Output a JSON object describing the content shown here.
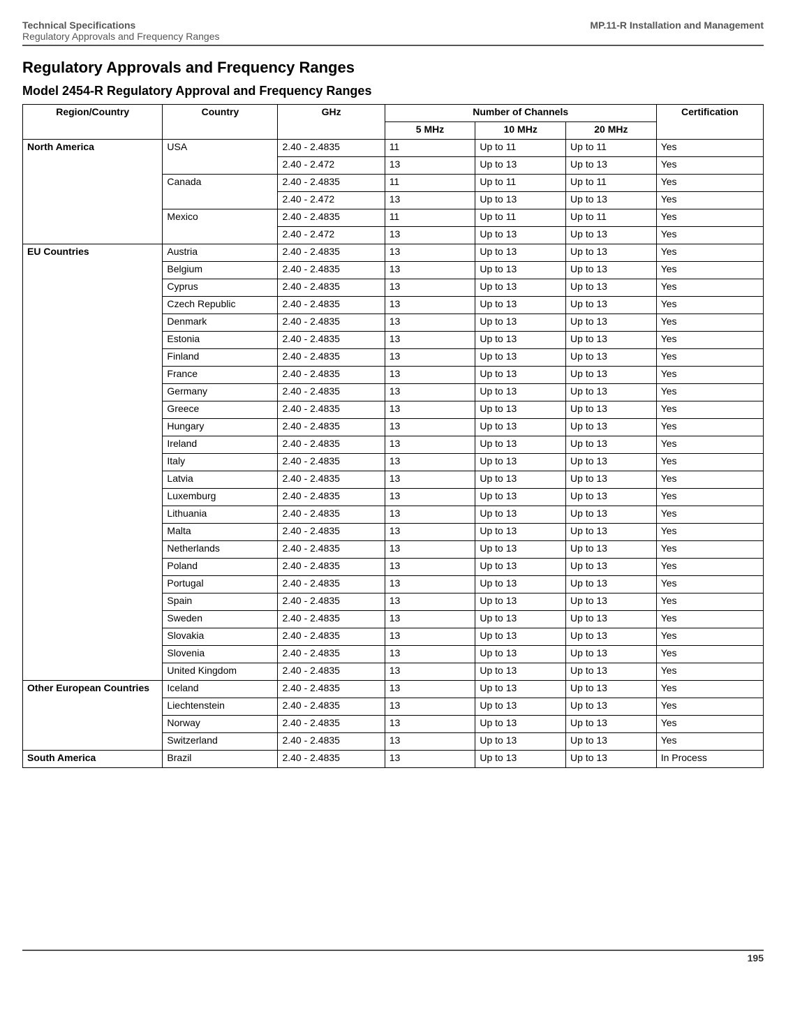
{
  "header": {
    "left_line1": "Technical Specifications",
    "left_line2": "Regulatory Approvals and Frequency Ranges",
    "right": "MP.11-R Installation and Management"
  },
  "titles": {
    "section": "Regulatory Approvals and Frequency Ranges",
    "subsection": "Model 2454-R Regulatory Approval and Frequency Ranges"
  },
  "table": {
    "head": {
      "region": "Region/Country",
      "country": "Country",
      "ghz": "GHz",
      "channels": "Number of Channels",
      "cert": "Certification",
      "c5": "5 MHz",
      "c10": "10 MHz",
      "c20": "20 MHz"
    },
    "groups": [
      {
        "region": "North America",
        "rows": [
          {
            "country": "USA",
            "country_rowspan": 2,
            "ghz": "2.40 - 2.4835",
            "c5": "11",
            "c10": "Up to 11",
            "c20": "Up to 11",
            "cert": "Yes"
          },
          {
            "ghz": "2.40 - 2.472",
            "c5": "13",
            "c10": "Up to 13",
            "c20": "Up to 13",
            "cert": "Yes"
          },
          {
            "country": "Canada",
            "country_rowspan": 2,
            "ghz": "2.40 - 2.4835",
            "c5": "11",
            "c10": "Up to 11",
            "c20": "Up to 11",
            "cert": "Yes"
          },
          {
            "ghz": "2.40 - 2.472",
            "c5": "13",
            "c10": "Up to 13",
            "c20": "Up to 13",
            "cert": "Yes"
          },
          {
            "country": "Mexico",
            "country_rowspan": 2,
            "ghz": "2.40 - 2.4835",
            "c5": "11",
            "c10": "Up to 11",
            "c20": "Up to 11",
            "cert": "Yes"
          },
          {
            "ghz": "2.40 - 2.472",
            "c5": "13",
            "c10": "Up to 13",
            "c20": "Up to 13",
            "cert": "Yes"
          }
        ]
      },
      {
        "region": "EU Countries",
        "rows": [
          {
            "country": "Austria",
            "ghz": "2.40 - 2.4835",
            "c5": "13",
            "c10": "Up to 13",
            "c20": "Up to 13",
            "cert": "Yes"
          },
          {
            "country": "Belgium",
            "ghz": "2.40 - 2.4835",
            "c5": "13",
            "c10": "Up to 13",
            "c20": "Up to 13",
            "cert": "Yes"
          },
          {
            "country": "Cyprus",
            "ghz": "2.40 - 2.4835",
            "c5": "13",
            "c10": "Up to 13",
            "c20": "Up to 13",
            "cert": "Yes"
          },
          {
            "country": "Czech Republic",
            "ghz": "2.40 - 2.4835",
            "c5": "13",
            "c10": "Up to 13",
            "c20": "Up to 13",
            "cert": "Yes"
          },
          {
            "country": "Denmark",
            "ghz": "2.40 - 2.4835",
            "c5": "13",
            "c10": "Up to 13",
            "c20": "Up to 13",
            "cert": "Yes"
          },
          {
            "country": "Estonia",
            "ghz": "2.40 - 2.4835",
            "c5": "13",
            "c10": "Up to 13",
            "c20": "Up to 13",
            "cert": "Yes"
          },
          {
            "country": "Finland",
            "ghz": "2.40 - 2.4835",
            "c5": "13",
            "c10": "Up to 13",
            "c20": "Up to 13",
            "cert": "Yes"
          },
          {
            "country": "France",
            "ghz": "2.40 - 2.4835",
            "c5": "13",
            "c10": "Up to 13",
            "c20": "Up to 13",
            "cert": "Yes"
          },
          {
            "country": "Germany",
            "ghz": "2.40 - 2.4835",
            "c5": "13",
            "c10": "Up to 13",
            "c20": "Up to 13",
            "cert": "Yes"
          },
          {
            "country": "Greece",
            "ghz": "2.40 - 2.4835",
            "c5": "13",
            "c10": "Up to 13",
            "c20": "Up to 13",
            "cert": "Yes"
          },
          {
            "country": "Hungary",
            "ghz": "2.40 - 2.4835",
            "c5": "13",
            "c10": "Up to 13",
            "c20": "Up to 13",
            "cert": "Yes"
          },
          {
            "country": "Ireland",
            "ghz": "2.40 - 2.4835",
            "c5": "13",
            "c10": "Up to 13",
            "c20": "Up to 13",
            "cert": "Yes"
          },
          {
            "country": "Italy",
            "ghz": "2.40 - 2.4835",
            "c5": "13",
            "c10": "Up to 13",
            "c20": "Up to 13",
            "cert": "Yes"
          },
          {
            "country": "Latvia",
            "ghz": "2.40 - 2.4835",
            "c5": "13",
            "c10": "Up to 13",
            "c20": "Up to 13",
            "cert": "Yes"
          },
          {
            "country": "Luxemburg",
            "ghz": "2.40 - 2.4835",
            "c5": "13",
            "c10": "Up to 13",
            "c20": "Up to 13",
            "cert": "Yes"
          },
          {
            "country": "Lithuania",
            "ghz": "2.40 - 2.4835",
            "c5": "13",
            "c10": "Up to 13",
            "c20": "Up to 13",
            "cert": "Yes"
          },
          {
            "country": "Malta",
            "ghz": "2.40 - 2.4835",
            "c5": "13",
            "c10": "Up to 13",
            "c20": "Up to 13",
            "cert": "Yes"
          },
          {
            "country": "Netherlands",
            "ghz": "2.40 - 2.4835",
            "c5": "13",
            "c10": "Up to 13",
            "c20": "Up to 13",
            "cert": "Yes"
          },
          {
            "country": "Poland",
            "ghz": "2.40 - 2.4835",
            "c5": "13",
            "c10": "Up to 13",
            "c20": "Up to 13",
            "cert": "Yes"
          },
          {
            "country": "Portugal",
            "ghz": "2.40 - 2.4835",
            "c5": "13",
            "c10": "Up to 13",
            "c20": "Up to 13",
            "cert": "Yes"
          },
          {
            "country": "Spain",
            "ghz": "2.40 - 2.4835",
            "c5": "13",
            "c10": "Up to 13",
            "c20": "Up to 13",
            "cert": "Yes"
          },
          {
            "country": "Sweden",
            "ghz": "2.40 - 2.4835",
            "c5": "13",
            "c10": "Up to 13",
            "c20": "Up to 13",
            "cert": "Yes"
          },
          {
            "country": "Slovakia",
            "ghz": "2.40 - 2.4835",
            "c5": "13",
            "c10": "Up to 13",
            "c20": "Up to 13",
            "cert": "Yes"
          },
          {
            "country": "Slovenia",
            "ghz": "2.40 - 2.4835",
            "c5": "13",
            "c10": "Up to 13",
            "c20": "Up to 13",
            "cert": "Yes"
          },
          {
            "country": "United Kingdom",
            "ghz": "2.40 - 2.4835",
            "c5": "13",
            "c10": "Up to 13",
            "c20": "Up to 13",
            "cert": "Yes"
          }
        ]
      },
      {
        "region": "Other European Countries",
        "rows": [
          {
            "country": "Iceland",
            "ghz": "2.40 - 2.4835",
            "c5": "13",
            "c10": "Up to 13",
            "c20": "Up to 13",
            "cert": "Yes"
          },
          {
            "country": "Liechtenstein",
            "ghz": "2.40 - 2.4835",
            "c5": "13",
            "c10": "Up to 13",
            "c20": "Up to 13",
            "cert": "Yes"
          },
          {
            "country": "Norway",
            "ghz": "2.40 - 2.4835",
            "c5": "13",
            "c10": "Up to 13",
            "c20": "Up to 13",
            "cert": "Yes"
          },
          {
            "country": "Switzerland",
            "ghz": "2.40 - 2.4835",
            "c5": "13",
            "c10": "Up to 13",
            "c20": "Up to 13",
            "cert": "Yes"
          }
        ]
      },
      {
        "region": "South America",
        "rows": [
          {
            "country": "Brazil",
            "ghz": "2.40 - 2.4835",
            "c5": "13",
            "c10": "Up to 13",
            "c20": "Up to 13",
            "cert": "In Process"
          }
        ]
      }
    ],
    "col_widths_pct": [
      17,
      14,
      13,
      11,
      11,
      11,
      13
    ]
  },
  "footer": {
    "page": "195"
  }
}
